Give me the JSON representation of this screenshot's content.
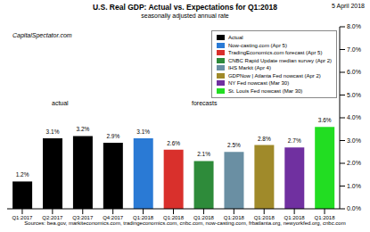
{
  "chart_data": {
    "type": "bar",
    "title": "U.S. Real GDP: Actual vs. Expectations for Q1:2018",
    "subtitle": "seasonally adjusted annual rate",
    "annotations": [
      "5 April 2018",
      "CapitalSpectator.com",
      "actual",
      "forecasts",
      "Sources: bea.gov, markiteconomics.com, tradingeconomics.com, cnbc.com, now-casting.com, frbatlanta.org, newyorkfed.org, cnbc.com"
    ],
    "categories": [
      "Q1:2017",
      "Q2:2017",
      "Q3:2017",
      "Q4:2017",
      "Q1:2018",
      "Q1:2018",
      "Q1:2018",
      "Q1:2018",
      "Q1:2018",
      "Q1:2018",
      "Q1:2018"
    ],
    "series": [
      {
        "name": "Actual",
        "color": "#000000",
        "values": [
          1.2,
          3.1,
          3.2,
          2.9,
          null,
          null,
          null,
          null,
          null,
          null,
          null
        ],
        "value_labels": [
          "1.2%",
          "3.1%",
          "3.2%",
          "2.9%",
          null,
          null,
          null,
          null,
          null,
          null,
          null
        ]
      },
      {
        "name": "Now-casting.com (Apr 5)",
        "color": "#2a7ad5",
        "values": [
          null,
          null,
          null,
          null,
          3.1,
          null,
          null,
          null,
          null,
          null,
          null
        ],
        "value_labels": [
          null,
          null,
          null,
          null,
          "3.1%",
          null,
          null,
          null,
          null,
          null,
          null
        ]
      },
      {
        "name": "TradingEconomics.com forecast (Apr 5)",
        "color": "#d9302c",
        "values": [
          null,
          null,
          null,
          null,
          null,
          2.6,
          null,
          null,
          null,
          null,
          null
        ],
        "value_labels": [
          null,
          null,
          null,
          null,
          null,
          "2.6%",
          null,
          null,
          null,
          null,
          null
        ]
      },
      {
        "name": "CNBC Rapid Update median survey (Apr 2)",
        "color": "#2e8b3a",
        "values": [
          null,
          null,
          null,
          null,
          null,
          null,
          2.1,
          null,
          null,
          null,
          null
        ],
        "value_labels": [
          null,
          null,
          null,
          null,
          null,
          null,
          "2.1%",
          null,
          null,
          null,
          null
        ]
      },
      {
        "name": "IHS Markit (Apr 4)",
        "color": "#6a8fa3",
        "values": [
          null,
          null,
          null,
          null,
          null,
          null,
          null,
          2.5,
          null,
          null,
          null
        ],
        "value_labels": [
          null,
          null,
          null,
          null,
          null,
          null,
          null,
          "2.5%",
          null,
          null,
          null
        ]
      },
      {
        "name": "GDPNow | Atlanta Fed nowcast (Apr 2)",
        "color": "#a08a2a",
        "values": [
          null,
          null,
          null,
          null,
          null,
          null,
          null,
          null,
          2.8,
          null,
          null
        ],
        "value_labels": [
          null,
          null,
          null,
          null,
          null,
          null,
          null,
          null,
          "2.8%",
          null,
          null
        ]
      },
      {
        "name": "NY Fed nowcast (Mar 30)",
        "color": "#7030a0",
        "values": [
          null,
          null,
          null,
          null,
          null,
          null,
          null,
          null,
          null,
          2.7,
          null
        ],
        "value_labels": [
          null,
          null,
          null,
          null,
          null,
          null,
          null,
          null,
          null,
          "2.7%",
          null
        ]
      },
      {
        "name": "St. Louis Fed nowcast (Mar 30)",
        "color": "#22dd22",
        "values": [
          null,
          null,
          null,
          null,
          null,
          null,
          null,
          null,
          null,
          null,
          3.6
        ],
        "value_labels": [
          null,
          null,
          null,
          null,
          null,
          null,
          null,
          null,
          null,
          null,
          "3.6%"
        ]
      }
    ],
    "ylim": [
      0,
      8
    ],
    "yticks": [
      {
        "value": 0,
        "label": "0.0%"
      },
      {
        "value": 1,
        "label": "1.0%"
      },
      {
        "value": 2,
        "label": "2.0%"
      },
      {
        "value": 3,
        "label": "3.0%"
      },
      {
        "value": 4,
        "label": "4.0%"
      },
      {
        "value": 5,
        "label": "5.0%"
      },
      {
        "value": 6,
        "label": "6.0%"
      },
      {
        "value": 7,
        "label": "7.0%"
      },
      {
        "value": 8,
        "label": "8.0%"
      }
    ],
    "grid": false,
    "legend": "top right",
    "data_labels": true
  }
}
